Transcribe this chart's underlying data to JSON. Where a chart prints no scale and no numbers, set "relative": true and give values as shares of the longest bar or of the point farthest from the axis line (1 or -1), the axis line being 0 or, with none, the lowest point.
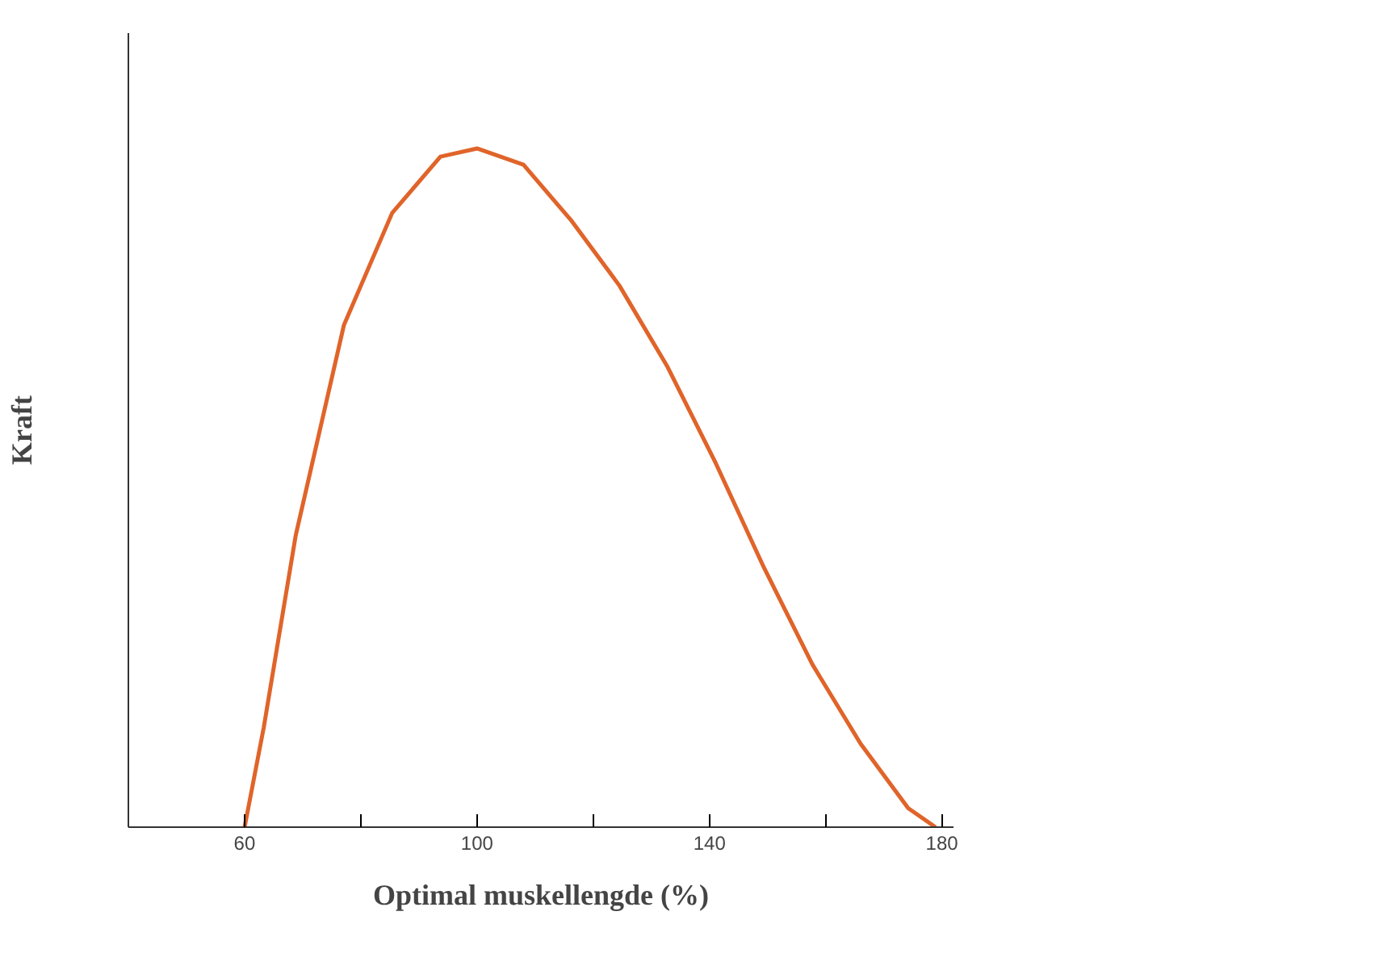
{
  "chart_data": {
    "type": "line",
    "relative": true,
    "xlabel": "Optimal muskellengde (%)",
    "ylabel": "Kraft",
    "xlim": [
      40,
      182
    ],
    "xticks": [
      60,
      {
        "value": 80,
        "label": null
      },
      100,
      {
        "value": 120,
        "label": null
      },
      140,
      {
        "value": 160,
        "label": null
      },
      180
    ],
    "grid": false,
    "series": [
      {
        "color": "#e0642a",
        "x": [
          60,
          63.3,
          68.8,
          77.1,
          85.4,
          93.7,
          100,
          108,
          116.3,
          124.5,
          132.8,
          141.1,
          149.4,
          157.7,
          166,
          174.2,
          178.9
        ],
        "values": [
          0,
          0.147,
          0.43,
          0.74,
          0.905,
          0.988,
          1.0,
          0.976,
          0.893,
          0.798,
          0.678,
          0.536,
          0.382,
          0.24,
          0.123,
          0.028,
          0
        ]
      }
    ]
  }
}
